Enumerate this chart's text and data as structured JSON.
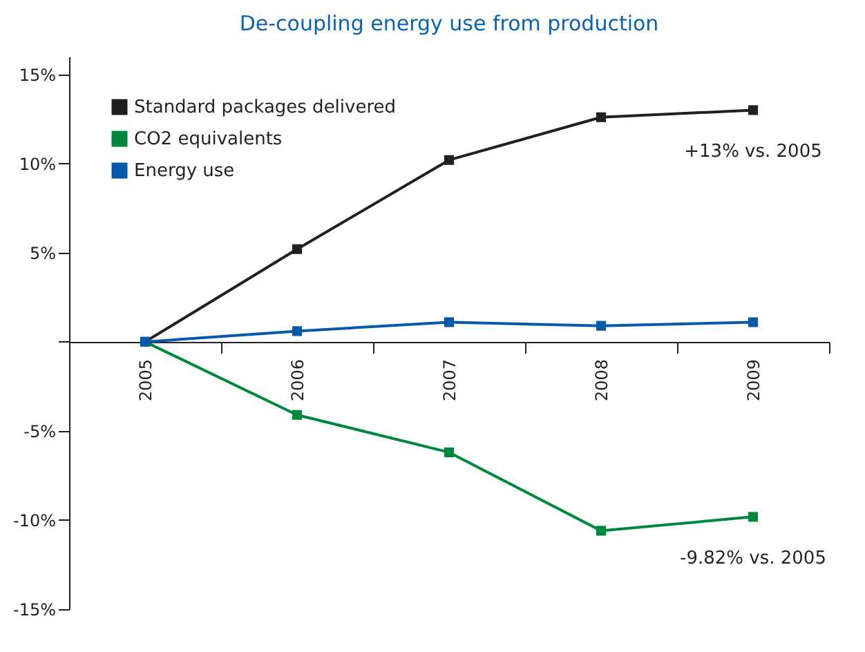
{
  "chart_data": {
    "type": "line",
    "title": "De-coupling energy use from production",
    "categories": [
      "2005",
      "2006",
      "2007",
      "2008",
      "2009"
    ],
    "series": [
      {
        "name": "Standard packages delivered",
        "color": "#231f20",
        "values": [
          0,
          5.2,
          10.2,
          12.6,
          13
        ]
      },
      {
        "name": "CO2 equivalents",
        "color": "#00873e",
        "values": [
          0,
          -4.1,
          -6.2,
          -10.6,
          -9.82
        ]
      },
      {
        "name": "Energy use",
        "color": "#0659a8",
        "values": [
          0,
          0.6,
          1.1,
          0.9,
          1.1
        ]
      }
    ],
    "ylim": [
      -15,
      16
    ],
    "yticks": [
      {
        "value": -15,
        "label": "-15%"
      },
      {
        "value": -10,
        "label": "-10%"
      },
      {
        "value": -5,
        "label": "-5%"
      },
      {
        "value": 0,
        "label": null
      },
      {
        "value": 5,
        "label": "5%"
      },
      {
        "value": 10,
        "label": "10%"
      },
      {
        "value": 15,
        "label": "15%"
      }
    ],
    "annotations": [
      {
        "text": "+13% vs. 2005",
        "x": "2009",
        "y": 13
      },
      {
        "text": "-9.82% vs. 2005",
        "x": "2009",
        "y": -9.82
      }
    ],
    "grid": false,
    "legend": "top left",
    "marker": "square",
    "line_style": "solid"
  }
}
